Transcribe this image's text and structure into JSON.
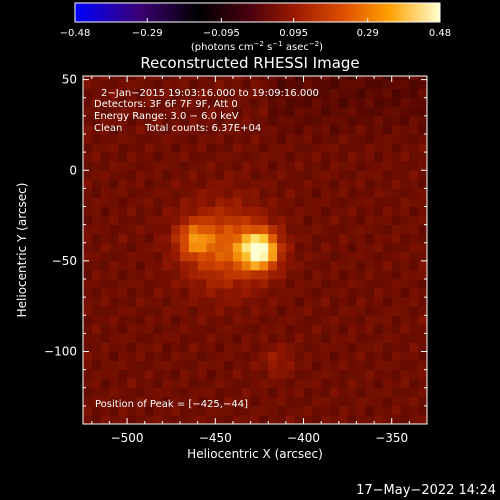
{
  "chart_data": {
    "type": "heatmap",
    "title": "Reconstructed RHESSI Image",
    "xlabel": "Heliocentric X (arcsec)",
    "ylabel": "Heliocentric Y (arcsec)",
    "xlim": [
      -525,
      -330
    ],
    "ylim": [
      -140,
      52
    ],
    "xticks": [
      -500,
      -450,
      -400,
      -350
    ],
    "xtick_labels": [
      "−500",
      "−450",
      "−400",
      "−350"
    ],
    "yticks": [
      50,
      0,
      -50,
      -100
    ],
    "ytick_labels": [
      "50",
      "0",
      "−50",
      "−100"
    ],
    "colorbar": {
      "range": [
        -0.48,
        0.48
      ],
      "ticks": [
        -0.48,
        -0.29,
        -0.095,
        0.095,
        0.29,
        0.48
      ],
      "tick_labels": [
        "−0.48",
        "−0.29",
        "−0.095",
        "0.095",
        "0.29",
        "0.48"
      ],
      "unit_label_parts": {
        "pre": "(photons cm",
        "sup1": "−2",
        "mid1": " s",
        "sup2": "−1",
        "mid2": " asec",
        "sup3": "−2",
        "post": ")"
      }
    },
    "sources": [
      {
        "x": -425,
        "y": -44,
        "relative_intensity": 1.0
      },
      {
        "x": -462,
        "y": -38,
        "relative_intensity": 0.6
      }
    ],
    "annotations": {
      "time_range": "2−Jan−2015 19:03:16.000 to 19:09:16.000",
      "detectors": "Detectors: 3F 6F 7F 9F, Att 0",
      "energy": "Energy Range: 3.0 − 6.0 keV",
      "method": "Clean",
      "counts": "Total counts: 6.37E+04",
      "peak": "Position of Peak = [−425,−44]"
    }
  },
  "footer": {
    "date": "17−May−2022 14:24"
  }
}
